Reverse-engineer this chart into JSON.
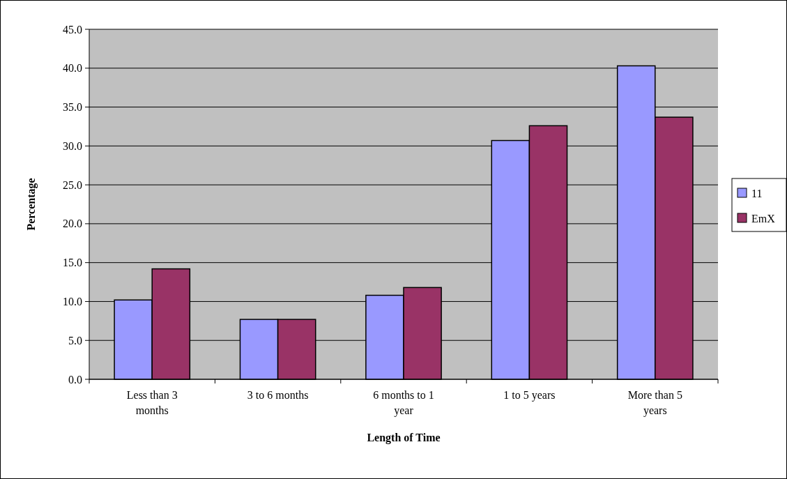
{
  "chart_data": {
    "type": "bar",
    "xlabel": "Length of Time",
    "ylabel": "Percentage",
    "categories": [
      "Less than 3 months",
      "3 to 6 months",
      "6 months to 1 year",
      "1 to 5 years",
      "More than 5 years"
    ],
    "series": [
      {
        "name": "11",
        "color": "#9999ff",
        "values": [
          10.2,
          7.7,
          10.8,
          30.7,
          40.3
        ]
      },
      {
        "name": "EmX",
        "color": "#993366",
        "values": [
          14.2,
          7.7,
          11.8,
          32.6,
          33.7
        ]
      }
    ],
    "ylim": [
      0,
      45
    ],
    "yticks": [
      {
        "value": 0,
        "label": "0.0"
      },
      {
        "value": 5,
        "label": "5.0"
      },
      {
        "value": 10,
        "label": "10.0"
      },
      {
        "value": 15,
        "label": "15.0"
      },
      {
        "value": 20,
        "label": "20.0"
      },
      {
        "value": 25,
        "label": "25.0"
      },
      {
        "value": 30,
        "label": "30.0"
      },
      {
        "value": 35,
        "label": "35.0"
      },
      {
        "value": 40,
        "label": "40.0"
      },
      {
        "value": 45,
        "label": "45.0"
      }
    ],
    "grid": "y",
    "legend": "right"
  }
}
